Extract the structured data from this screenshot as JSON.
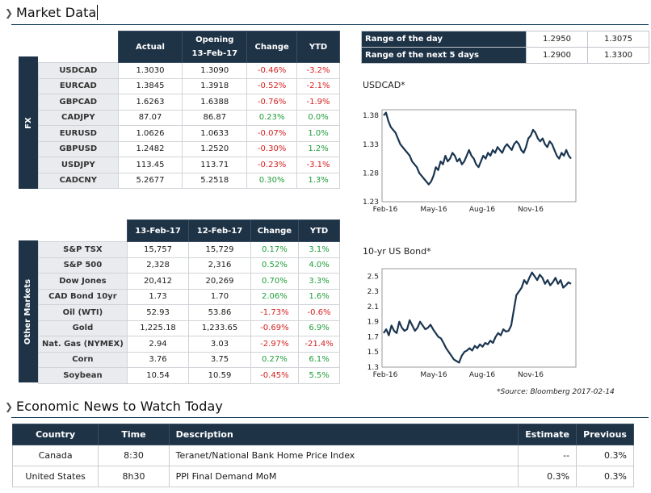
{
  "header": {
    "title": "Market Data"
  },
  "fx": {
    "side_label": "FX",
    "headers": [
      "Actual",
      "Opening\n13-Feb-17",
      "Change",
      "YTD"
    ],
    "rows": [
      {
        "name": "USDCAD",
        "actual": "1.3030",
        "opening": "1.3090",
        "change": "-0.46%",
        "ytd": "-3.2%"
      },
      {
        "name": "EURCAD",
        "actual": "1.3845",
        "opening": "1.3918",
        "change": "-0.52%",
        "ytd": "-2.1%"
      },
      {
        "name": "GBPCAD",
        "actual": "1.6263",
        "opening": "1.6388",
        "change": "-0.76%",
        "ytd": "-1.9%"
      },
      {
        "name": "CADJPY",
        "actual": "87.07",
        "opening": "86.87",
        "change": "0.23%",
        "ytd": "0.0%"
      },
      {
        "name": "EURUSD",
        "actual": "1.0626",
        "opening": "1.0633",
        "change": "-0.07%",
        "ytd": "1.0%"
      },
      {
        "name": "GBPUSD",
        "actual": "1.2482",
        "opening": "1.2520",
        "change": "-0.30%",
        "ytd": "1.2%"
      },
      {
        "name": "USDJPY",
        "actual": "113.45",
        "opening": "113.71",
        "change": "-0.23%",
        "ytd": "-3.1%"
      },
      {
        "name": "CADCNY",
        "actual": "5.2677",
        "opening": "5.2518",
        "change": "0.30%",
        "ytd": "1.3%"
      }
    ]
  },
  "other": {
    "side_label": "Other Markets",
    "headers": [
      "13-Feb-17",
      "12-Feb-17",
      "Change",
      "YTD"
    ],
    "rows": [
      {
        "name": "S&P TSX",
        "a": "15,757",
        "b": "15,729",
        "change": "0.17%",
        "ytd": "3.1%"
      },
      {
        "name": "S&P 500",
        "a": "2,328",
        "b": "2,316",
        "change": "0.52%",
        "ytd": "4.0%"
      },
      {
        "name": "Dow Jones",
        "a": "20,412",
        "b": "20,269",
        "change": "0.70%",
        "ytd": "3.3%"
      },
      {
        "name": "CAD Bond 10yr",
        "a": "1.73",
        "b": "1.70",
        "change": "2.06%",
        "ytd": "1.6%"
      },
      {
        "name": "Oil (WTI)",
        "a": "52.93",
        "b": "53.86",
        "change": "-1.73%",
        "ytd": "-0.6%"
      },
      {
        "name": "Gold",
        "a": "1,225.18",
        "b": "1,233.65",
        "change": "-0.69%",
        "ytd": "6.9%"
      },
      {
        "name": "Nat. Gas (NYMEX)",
        "a": "2.94",
        "b": "3.03",
        "change": "-2.97%",
        "ytd": "-21.4%"
      },
      {
        "name": "Corn",
        "a": "3.76",
        "b": "3.75",
        "change": "0.27%",
        "ytd": "6.1%"
      },
      {
        "name": "Soybean",
        "a": "10.54",
        "b": "10.59",
        "change": "-0.45%",
        "ytd": "5.5%"
      }
    ]
  },
  "range": {
    "rows": [
      {
        "label": "Range of the day",
        "low": "1.2950",
        "high": "1.3075"
      },
      {
        "label": "Range of the next 5 days",
        "low": "1.2900",
        "high": "1.3300"
      }
    ]
  },
  "chart_data": [
    {
      "type": "line",
      "title": "USDCAD*",
      "x_ticks": [
        "Feb-16",
        "May-16",
        "Aug-16",
        "Nov-16"
      ],
      "y_ticks": [
        "1.38",
        "1.33",
        "1.28",
        "1.23"
      ],
      "ylim": [
        1.23,
        1.39
      ],
      "color": "#1a3550",
      "values": [
        1.38,
        1.385,
        1.37,
        1.36,
        1.355,
        1.35,
        1.34,
        1.33,
        1.325,
        1.32,
        1.315,
        1.31,
        1.3,
        1.295,
        1.29,
        1.28,
        1.275,
        1.27,
        1.265,
        1.26,
        1.265,
        1.275,
        1.29,
        1.285,
        1.3,
        1.295,
        1.31,
        1.3,
        1.305,
        1.315,
        1.31,
        1.3,
        1.305,
        1.295,
        1.3,
        1.31,
        1.32,
        1.31,
        1.305,
        1.295,
        1.29,
        1.3,
        1.31,
        1.305,
        1.315,
        1.31,
        1.32,
        1.315,
        1.325,
        1.32,
        1.315,
        1.325,
        1.33,
        1.325,
        1.32,
        1.33,
        1.335,
        1.33,
        1.32,
        1.315,
        1.325,
        1.34,
        1.345,
        1.355,
        1.35,
        1.34,
        1.335,
        1.34,
        1.33,
        1.325,
        1.335,
        1.33,
        1.32,
        1.31,
        1.305,
        1.315,
        1.31,
        1.32,
        1.31,
        1.305
      ]
    },
    {
      "type": "line",
      "title": "10-yr US Bond*",
      "x_ticks": [
        "Feb-16",
        "May-16",
        "Aug-16",
        "Nov-16"
      ],
      "y_ticks": [
        "2.5",
        "2.3",
        "2.1",
        "1.9",
        "1.7",
        "1.5",
        "1.3"
      ],
      "ylim": [
        1.3,
        2.6
      ],
      "color": "#1a3550",
      "values": [
        1.75,
        1.8,
        1.72,
        1.85,
        1.78,
        1.75,
        1.9,
        1.82,
        1.78,
        1.8,
        1.92,
        1.85,
        1.78,
        1.82,
        1.9,
        1.85,
        1.8,
        1.82,
        1.86,
        1.8,
        1.75,
        1.7,
        1.68,
        1.62,
        1.55,
        1.5,
        1.45,
        1.4,
        1.38,
        1.36,
        1.45,
        1.5,
        1.52,
        1.55,
        1.52,
        1.58,
        1.55,
        1.6,
        1.57,
        1.62,
        1.6,
        1.65,
        1.62,
        1.7,
        1.75,
        1.72,
        1.8,
        1.77,
        1.78,
        1.85,
        2.05,
        2.25,
        2.3,
        2.35,
        2.45,
        2.4,
        2.48,
        2.55,
        2.5,
        2.45,
        2.52,
        2.48,
        2.4,
        2.45,
        2.38,
        2.42,
        2.48,
        2.4,
        2.45,
        2.35,
        2.38,
        2.42,
        2.4
      ]
    }
  ],
  "source_note": "*Source: Bloomberg  2017-02-14",
  "news": {
    "title": "Economic News to Watch Today",
    "headers": [
      "Country",
      "Time",
      "Description",
      "Estimate",
      "Previous"
    ],
    "rows": [
      {
        "country": "Canada",
        "time": "8:30",
        "desc": "Teranet/National Bank Home Price Index",
        "estimate": "--",
        "previous": "0.3%"
      },
      {
        "country": "United States",
        "time": "8h30",
        "desc": "PPI Final Demand MoM",
        "estimate": "0.3%",
        "previous": "0.3%"
      }
    ]
  }
}
